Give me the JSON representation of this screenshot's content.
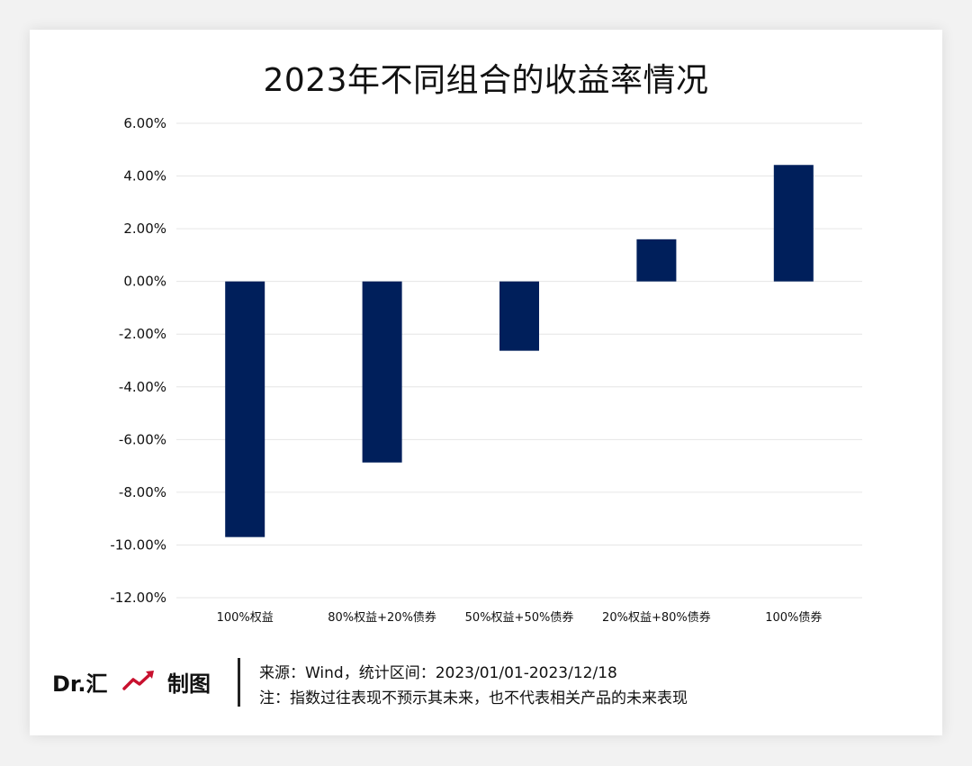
{
  "chart_data": {
    "type": "bar",
    "title": "2023年不同组合的收益率情况",
    "categories": [
      "100%权益",
      "80%权益+20%债券",
      "50%权益+50%债券",
      "20%权益+80%债券",
      "100%债券"
    ],
    "values": [
      -9.7,
      -6.87,
      -2.63,
      1.6,
      4.42
    ],
    "ylim": [
      -12,
      6
    ],
    "yticks": [
      6,
      4,
      2,
      0,
      -2,
      -4,
      -6,
      -8,
      -10,
      -12
    ],
    "ytick_labels": [
      "6.00%",
      "4.00%",
      "2.00%",
      "0.00%",
      "-2.00%",
      "-4.00%",
      "-6.00%",
      "-8.00%",
      "-10.00%",
      "-12.00%"
    ],
    "grid": true,
    "legend": "none",
    "bar_color": "#001f5b"
  },
  "footer": {
    "brand": "Dr.汇",
    "brand_suffix": "制图",
    "source": "来源：Wind，统计区间：2023/01/01-2023/12/18",
    "disclaimer": "注：指数过往表现不预示其未来，也不代表相关产品的未来表现"
  },
  "colors": {
    "bar": "#001f5b",
    "brand_icon": "#c8102e",
    "grid": "#e6e6e6"
  }
}
